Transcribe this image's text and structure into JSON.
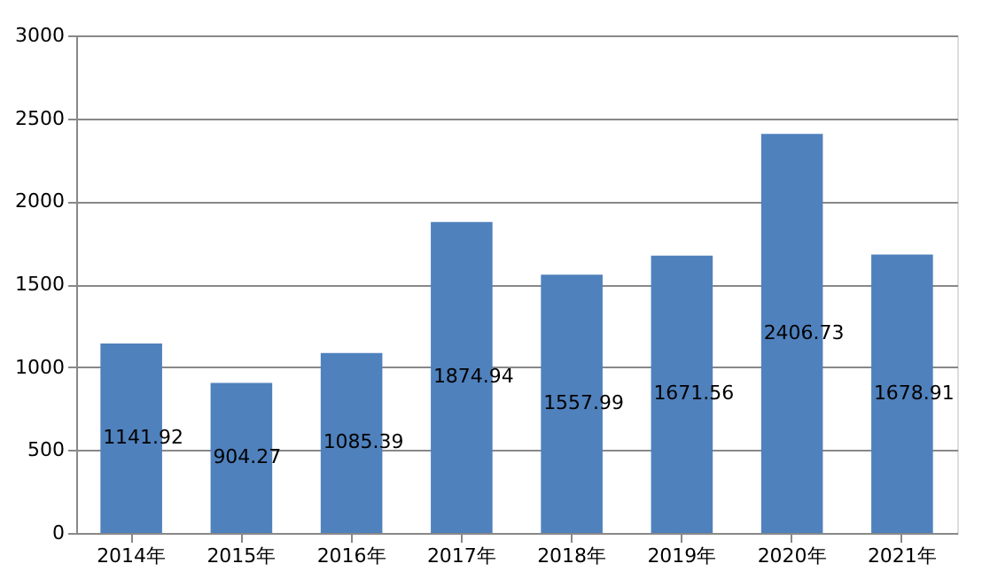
{
  "chart_data": {
    "type": "bar",
    "categories": [
      "2014年",
      "2015年",
      "2016年",
      "2017年",
      "2018年",
      "2019年",
      "2020年",
      "2021年"
    ],
    "values": [
      1141.92,
      904.27,
      1085.39,
      1874.94,
      1557.99,
      1671.56,
      2406.73,
      1678.91
    ],
    "color": "#4f81bd",
    "ylim": [
      0,
      3000
    ],
    "yticks": [
      0,
      500,
      1000,
      1500,
      2000,
      2500,
      3000
    ],
    "grid": "y",
    "data_labels": true
  }
}
